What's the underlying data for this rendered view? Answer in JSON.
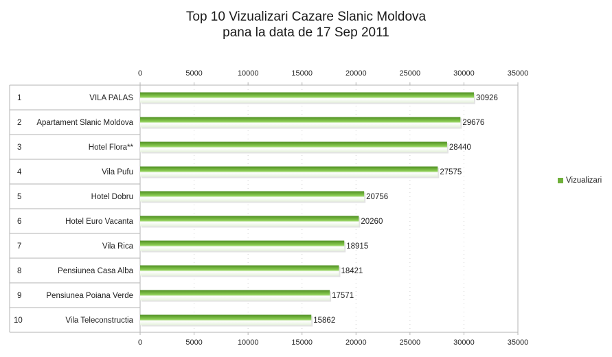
{
  "chart_data": {
    "type": "bar",
    "orientation": "horizontal",
    "title": "Top 10 Vizualizari Cazare Slanic Moldova",
    "subtitle": "pana la data de 17 Sep 2011",
    "xlim": [
      0,
      35000
    ],
    "xticks": [
      0,
      5000,
      10000,
      15000,
      20000,
      25000,
      30000,
      35000
    ],
    "rank_labels": [
      "1",
      "2",
      "3",
      "4",
      "5",
      "6",
      "7",
      "8",
      "9",
      "10"
    ],
    "categories": [
      "VILA PALAS",
      "Apartament Slanic Moldova",
      "Hotel Flora**",
      "Vila Pufu",
      "Hotel Dobru",
      "Hotel Euro Vacanta",
      "Vila Rica",
      "Pensiunea Casa Alba",
      "Pensiunea Poiana Verde",
      "Vila Teleconstructia"
    ],
    "series": [
      {
        "name": "Vizualizari",
        "values": [
          30926,
          29676,
          28440,
          27575,
          20756,
          20260,
          18915,
          18421,
          17571,
          15862
        ]
      }
    ],
    "bar_color": "#6fb03a",
    "grid": true,
    "legend_position": "right",
    "axis_ticks_on": "top and bottom"
  }
}
